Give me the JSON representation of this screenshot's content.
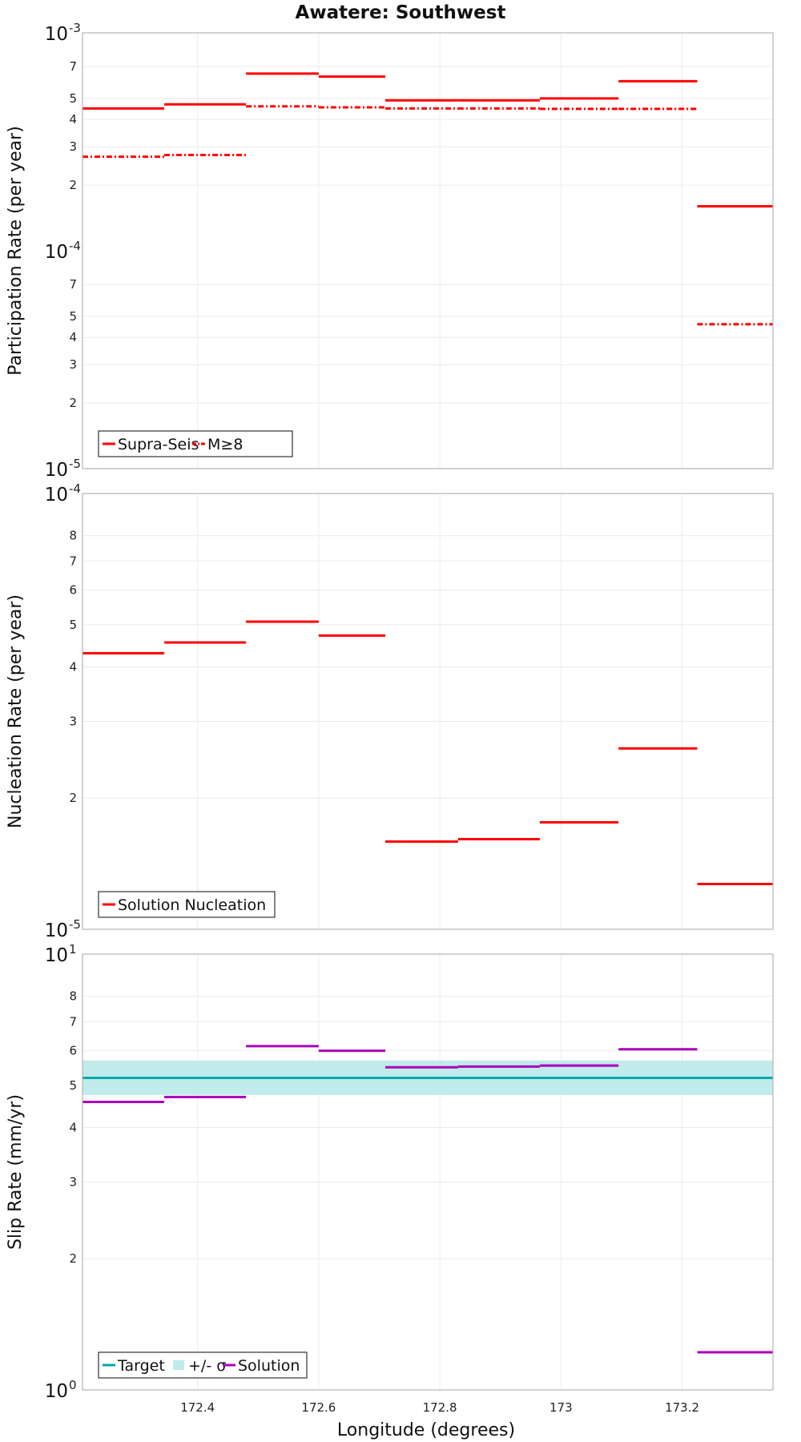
{
  "title": "Awatere: Southwest",
  "xlabel": "Longitude (degrees)",
  "chart_data": [
    {
      "type": "line",
      "ylabel": "Participation Rate (per year)",
      "yscale": "log",
      "ylim": [
        1e-05,
        0.001
      ],
      "xlim": [
        172.21,
        173.35
      ],
      "grid": true,
      "legend_position": "bottom-left",
      "series": [
        {
          "name": "Supra-Seis",
          "color": "#ff0000",
          "style": "solid",
          "segments": [
            {
              "x0": 172.21,
              "x1": 172.345,
              "y": 0.00045
            },
            {
              "x0": 172.345,
              "x1": 172.48,
              "y": 0.00047
            },
            {
              "x0": 172.48,
              "x1": 172.6,
              "y": 0.00065
            },
            {
              "x0": 172.6,
              "x1": 172.71,
              "y": 0.00063
            },
            {
              "x0": 172.71,
              "x1": 172.83,
              "y": 0.00049
            },
            {
              "x0": 172.83,
              "x1": 172.965,
              "y": 0.00049
            },
            {
              "x0": 172.965,
              "x1": 173.095,
              "y": 0.0005
            },
            {
              "x0": 173.095,
              "x1": 173.225,
              "y": 0.0006
            },
            {
              "x0": 173.225,
              "x1": 173.35,
              "y": 0.00016
            }
          ]
        },
        {
          "name": "M≥8",
          "color": "#ff0000",
          "style": "dashdot",
          "segments": [
            {
              "x0": 172.21,
              "x1": 172.345,
              "y": 0.00027
            },
            {
              "x0": 172.345,
              "x1": 172.48,
              "y": 0.000275
            },
            {
              "x0": 172.48,
              "x1": 172.6,
              "y": 0.00046
            },
            {
              "x0": 172.6,
              "x1": 172.71,
              "y": 0.000455
            },
            {
              "x0": 172.71,
              "x1": 172.83,
              "y": 0.00045
            },
            {
              "x0": 172.83,
              "x1": 172.965,
              "y": 0.00045
            },
            {
              "x0": 172.965,
              "x1": 173.095,
              "y": 0.000448
            },
            {
              "x0": 173.095,
              "x1": 173.225,
              "y": 0.000448
            },
            {
              "x0": 173.225,
              "x1": 173.35,
              "y": 4.6e-05
            }
          ]
        }
      ]
    },
    {
      "type": "line",
      "ylabel": "Nucleation Rate (per year)",
      "yscale": "log",
      "ylim": [
        1e-05,
        0.0001
      ],
      "xlim": [
        172.21,
        173.35
      ],
      "grid": true,
      "legend_position": "bottom-left",
      "series": [
        {
          "name": "Solution Nucleation",
          "color": "#ff0000",
          "style": "solid",
          "segments": [
            {
              "x0": 172.21,
              "x1": 172.345,
              "y": 4.3e-05
            },
            {
              "x0": 172.345,
              "x1": 172.48,
              "y": 4.55e-05
            },
            {
              "x0": 172.48,
              "x1": 172.6,
              "y": 5.08e-05
            },
            {
              "x0": 172.6,
              "x1": 172.71,
              "y": 4.72e-05
            },
            {
              "x0": 172.71,
              "x1": 172.83,
              "y": 1.59e-05
            },
            {
              "x0": 172.83,
              "x1": 172.965,
              "y": 1.61e-05
            },
            {
              "x0": 172.965,
              "x1": 173.095,
              "y": 1.76e-05
            },
            {
              "x0": 173.095,
              "x1": 173.225,
              "y": 2.6e-05
            },
            {
              "x0": 173.225,
              "x1": 173.35,
              "y": 1.27e-05
            }
          ]
        }
      ]
    },
    {
      "type": "line",
      "ylabel": "Slip Rate (mm/yr)",
      "yscale": "log",
      "ylim": [
        1,
        10
      ],
      "xlim": [
        172.21,
        173.35
      ],
      "grid": true,
      "legend_position": "bottom-left",
      "series": [
        {
          "name": "Target",
          "color": "#00aaaa",
          "style": "solid",
          "segments": [
            {
              "x0": 172.21,
              "x1": 173.35,
              "y": 5.2
            }
          ]
        },
        {
          "name": "+/- σ",
          "color": "#bfeaea",
          "style": "band",
          "band": {
            "x0": 172.21,
            "x1": 173.35,
            "low": 4.75,
            "high": 5.7
          }
        },
        {
          "name": "Solution",
          "color": "#aa00bb",
          "style": "solid",
          "segments": [
            {
              "x0": 172.21,
              "x1": 172.345,
              "y": 4.58
            },
            {
              "x0": 172.345,
              "x1": 172.48,
              "y": 4.7
            },
            {
              "x0": 172.48,
              "x1": 172.6,
              "y": 6.15
            },
            {
              "x0": 172.6,
              "x1": 172.71,
              "y": 6.0
            },
            {
              "x0": 172.71,
              "x1": 172.83,
              "y": 5.5
            },
            {
              "x0": 172.83,
              "x1": 172.965,
              "y": 5.52
            },
            {
              "x0": 172.965,
              "x1": 173.095,
              "y": 5.55
            },
            {
              "x0": 173.095,
              "x1": 173.225,
              "y": 6.05
            },
            {
              "x0": 173.225,
              "x1": 173.35,
              "y": 1.22
            }
          ]
        }
      ]
    }
  ],
  "x_ticks": [
    "172.4",
    "172.6",
    "172.8",
    "173",
    "173.2"
  ],
  "x_tick_values": [
    172.4,
    172.6,
    172.8,
    173.0,
    173.2
  ],
  "y_ticks": [
    {
      "minor": [
        {
          "v": 0.0002,
          "t": "2"
        },
        {
          "v": 0.0003,
          "t": "3"
        },
        {
          "v": 0.0004,
          "t": "4"
        },
        {
          "v": 0.0005,
          "t": "5"
        },
        {
          "v": 0.0007,
          "t": "7"
        },
        {
          "v": 2e-05,
          "t": "2"
        },
        {
          "v": 3e-05,
          "t": "3"
        },
        {
          "v": 4e-05,
          "t": "4"
        },
        {
          "v": 5e-05,
          "t": "5"
        },
        {
          "v": 7e-05,
          "t": "7"
        }
      ],
      "major": [
        {
          "v": 0.001,
          "base": "10",
          "exp": "-3"
        },
        {
          "v": 0.0001,
          "base": "10",
          "exp": "-4"
        },
        {
          "v": 1e-05,
          "base": "10",
          "exp": "-5"
        }
      ]
    },
    {
      "minor": [
        {
          "v": 2e-05,
          "t": "2"
        },
        {
          "v": 3e-05,
          "t": "3"
        },
        {
          "v": 4e-05,
          "t": "4"
        },
        {
          "v": 5e-05,
          "t": "5"
        },
        {
          "v": 6e-05,
          "t": "6"
        },
        {
          "v": 7e-05,
          "t": "7"
        },
        {
          "v": 8e-05,
          "t": "8"
        }
      ],
      "major": [
        {
          "v": 0.0001,
          "base": "10",
          "exp": "-4"
        },
        {
          "v": 1e-05,
          "base": "10",
          "exp": "-5"
        }
      ]
    },
    {
      "minor": [
        {
          "v": 2,
          "t": "2"
        },
        {
          "v": 3,
          "t": "3"
        },
        {
          "v": 4,
          "t": "4"
        },
        {
          "v": 5,
          "t": "5"
        },
        {
          "v": 6,
          "t": "6"
        },
        {
          "v": 7,
          "t": "7"
        },
        {
          "v": 8,
          "t": "8"
        }
      ],
      "major": [
        {
          "v": 10,
          "base": "10",
          "exp": "1"
        },
        {
          "v": 1,
          "base": "10",
          "exp": "0"
        }
      ]
    }
  ]
}
